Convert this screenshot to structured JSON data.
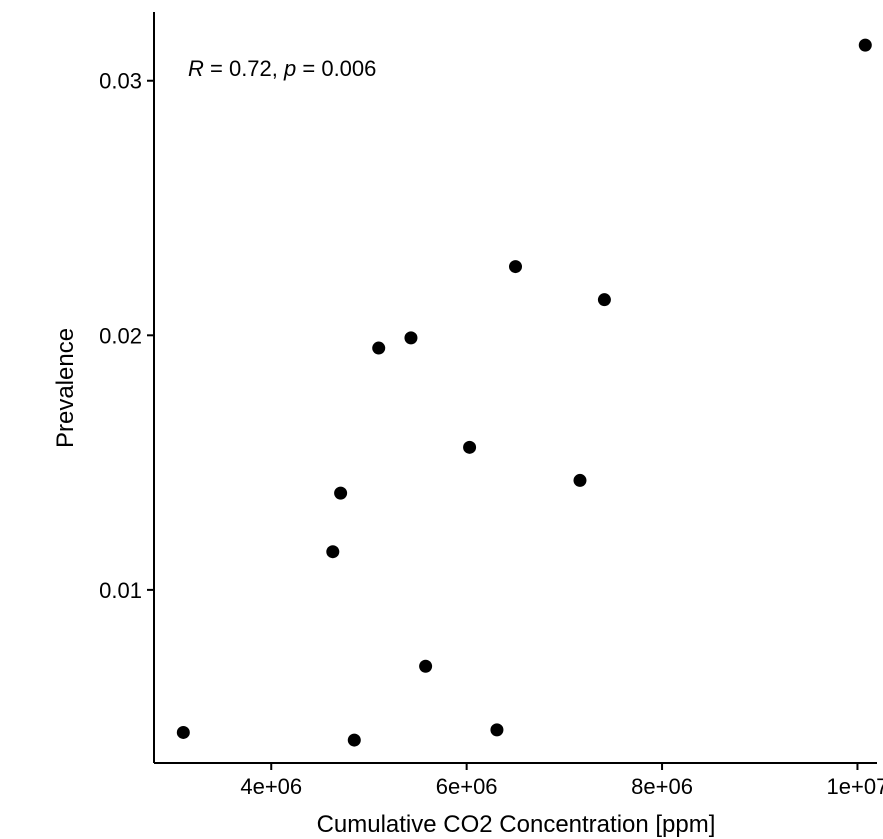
{
  "chart_data": {
    "type": "scatter",
    "xlabel": "Cumulative CO2 Concentration [ppm]",
    "ylabel": "Prevalence",
    "annotation": {
      "r_symbol": "R",
      "r_value": " = 0.72, ",
      "p_symbol": "p",
      "p_value": " = 0.006"
    },
    "xlim": [
      2800000,
      10200000
    ],
    "ylim": [
      0.0032,
      0.0327
    ],
    "x_ticks": [
      4000000,
      6000000,
      8000000,
      10000000
    ],
    "x_tick_labels": [
      "4e+06",
      "6e+06",
      "8e+06",
      "1e+07"
    ],
    "y_ticks": [
      0.01,
      0.02,
      0.03
    ],
    "y_tick_labels": [
      "0.01",
      "0.02",
      "0.03"
    ],
    "grid": false,
    "legend": "none",
    "marker_color": "#000000",
    "points": [
      {
        "x": 3100000,
        "y": 0.0044
      },
      {
        "x": 4630000,
        "y": 0.0115
      },
      {
        "x": 4710000,
        "y": 0.0138
      },
      {
        "x": 4850000,
        "y": 0.0041
      },
      {
        "x": 5100000,
        "y": 0.0195
      },
      {
        "x": 5430000,
        "y": 0.0199
      },
      {
        "x": 5580000,
        "y": 0.007
      },
      {
        "x": 6030000,
        "y": 0.0156
      },
      {
        "x": 6310000,
        "y": 0.0045
      },
      {
        "x": 6500000,
        "y": 0.0227
      },
      {
        "x": 7160000,
        "y": 0.0143
      },
      {
        "x": 7410000,
        "y": 0.0214
      },
      {
        "x": 10080000,
        "y": 0.0314
      }
    ]
  }
}
